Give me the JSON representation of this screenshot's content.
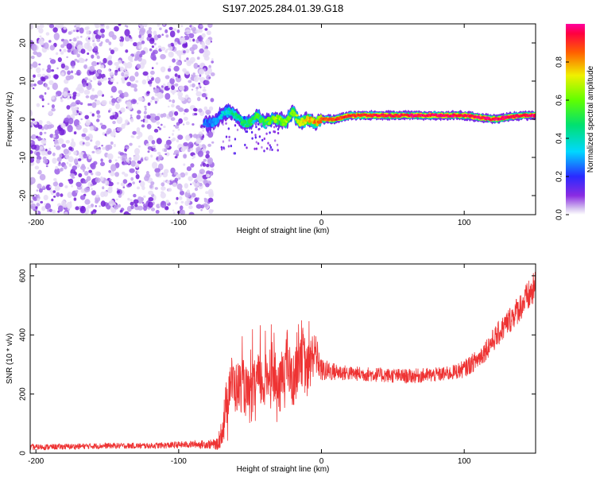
{
  "title": "S197.2025.284.01.39.G18",
  "chart_data": [
    {
      "type": "heatmap",
      "xlabel": "Height of straight line (km)",
      "ylabel": "Frequency (Hz)",
      "xlim": [
        -204,
        150
      ],
      "ylim": [
        -25,
        25
      ],
      "xticks": [
        -200,
        -100,
        0,
        100
      ],
      "xtick_labels": [
        "-200",
        "-100",
        "0",
        "100"
      ],
      "yticks": [
        -20,
        -10,
        0,
        10,
        20
      ],
      "ytick_labels": [
        "-20",
        "-10",
        "0",
        "10",
        "20"
      ],
      "colorbar": {
        "label": "Normalized spectral amplitude",
        "range": [
          0,
          1
        ],
        "ticks": [
          0,
          0.2,
          0.4,
          0.6,
          0.8
        ],
        "tick_labels": [
          "0.0",
          "0.2",
          "0.4",
          "0.6",
          "0.8"
        ]
      },
      "noise_region_x": [
        -204,
        -76
      ],
      "signal_ridge": {
        "x": [
          -82,
          -76,
          -70,
          -65,
          -60,
          -55,
          -50,
          -45,
          -40,
          -35,
          -30,
          -25,
          -20,
          -15,
          -10,
          -5,
          0,
          10,
          20,
          40,
          60,
          80,
          100,
          120,
          140,
          150
        ],
        "frequency": [
          -1,
          -1,
          1,
          2,
          1,
          -1,
          -1,
          1,
          -1,
          0,
          0,
          -1,
          2,
          -1,
          0,
          -1,
          0,
          0,
          1,
          1,
          1,
          1,
          1,
          0,
          1,
          1
        ],
        "amplitude": [
          0.25,
          0.3,
          0.35,
          0.4,
          0.45,
          0.5,
          0.5,
          0.55,
          0.55,
          0.6,
          0.65,
          0.65,
          0.6,
          0.7,
          0.75,
          0.8,
          0.85,
          0.9,
          0.9,
          0.92,
          0.95,
          0.95,
          0.95,
          0.95,
          0.95,
          0.95
        ]
      }
    },
    {
      "type": "line",
      "xlabel": "Height of straight line (km)",
      "ylabel": "SNR (10 * v/v)",
      "xlim": [
        -204,
        150
      ],
      "ylim": [
        0,
        640
      ],
      "xticks": [
        -200,
        -100,
        0,
        100
      ],
      "xtick_labels": [
        "-200",
        "-100",
        "0",
        "100"
      ],
      "yticks": [
        0,
        200,
        400,
        600
      ],
      "ytick_labels": [
        "0",
        "200",
        "400",
        "600"
      ],
      "line_color": "#ee3333",
      "series": [
        {
          "name": "SNR",
          "x": [
            -204,
            -180,
            -150,
            -120,
            -100,
            -90,
            -80,
            -72,
            -68,
            -64,
            -60,
            -55,
            -50,
            -45,
            -40,
            -35,
            -30,
            -25,
            -20,
            -15,
            -10,
            -5,
            0,
            10,
            20,
            40,
            60,
            80,
            90,
            100,
            110,
            120,
            130,
            140,
            150
          ],
          "y": [
            20,
            22,
            25,
            25,
            28,
            30,
            30,
            30,
            120,
            250,
            220,
            230,
            180,
            250,
            230,
            300,
            200,
            320,
            230,
            360,
            270,
            350,
            280,
            275,
            270,
            265,
            260,
            265,
            270,
            285,
            320,
            380,
            440,
            500,
            560
          ],
          "noise_amplitude": [
            10,
            10,
            10,
            10,
            12,
            12,
            15,
            20,
            80,
            90,
            90,
            90,
            90,
            90,
            90,
            100,
            90,
            110,
            90,
            120,
            90,
            80,
            40,
            30,
            25,
            25,
            25,
            25,
            25,
            30,
            35,
            40,
            45,
            50,
            60
          ]
        }
      ]
    }
  ]
}
